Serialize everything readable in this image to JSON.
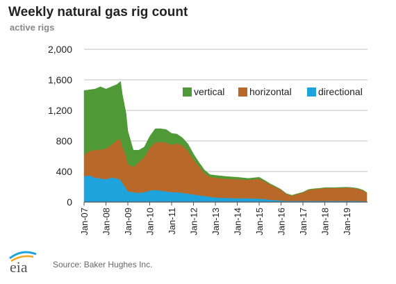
{
  "title": "Weekly natural gas rig count",
  "subtitle": "active rigs",
  "source": "Source: Baker Hughes Inc.",
  "logo_text": "eia",
  "colors": {
    "vertical": "#4f9a36",
    "horizontal": "#b8692a",
    "directional": "#1fa3dc",
    "grid": "#bfbfbf",
    "axis": "#555555"
  },
  "chart_data": {
    "type": "area",
    "stacked": true,
    "x": [
      2007.0,
      2007.25,
      2007.5,
      2007.75,
      2008.0,
      2008.25,
      2008.5,
      2008.67,
      2008.75,
      2008.92,
      2009.0,
      2009.25,
      2009.5,
      2009.75,
      2010.0,
      2010.25,
      2010.5,
      2010.75,
      2011.0,
      2011.25,
      2011.5,
      2011.75,
      2012.0,
      2012.25,
      2012.5,
      2012.75,
      2013.0,
      2013.5,
      2014.0,
      2014.5,
      2015.0,
      2015.25,
      2015.5,
      2015.75,
      2016.0,
      2016.25,
      2016.5,
      2016.75,
      2017.0,
      2017.25,
      2017.5,
      2017.75,
      2018.0,
      2018.5,
      2019.0,
      2019.25,
      2019.5,
      2019.75,
      2019.92
    ],
    "x_tick_labels": [
      "Jan-07",
      "Jan-08",
      "Jan-09",
      "Jan-10",
      "Jan-11",
      "Jan-12",
      "Jan-13",
      "Jan-14",
      "Jan-15",
      "Jan-16",
      "Jan-17",
      "Jan-18",
      "Jan-19"
    ],
    "x_ticks": [
      2007,
      2008,
      2009,
      2010,
      2011,
      2012,
      2013,
      2014,
      2015,
      2016,
      2017,
      2018,
      2019
    ],
    "xlim": [
      2007.0,
      2019.95
    ],
    "ylim": [
      0,
      2000
    ],
    "y_ticks": [
      0,
      400,
      800,
      1200,
      1600,
      2000
    ],
    "y_tick_labels": [
      "0",
      "400",
      "800",
      "1,200",
      "1,600",
      "2,000"
    ],
    "grid": true,
    "legend_position": "top-right",
    "series": [
      {
        "name": "directional",
        "values": [
          340,
          350,
          320,
          310,
          300,
          320,
          310,
          290,
          250,
          180,
          140,
          130,
          120,
          130,
          150,
          160,
          150,
          140,
          130,
          130,
          120,
          110,
          100,
          90,
          80,
          70,
          60,
          55,
          50,
          50,
          45,
          40,
          30,
          25,
          20,
          15,
          15,
          15,
          15,
          15,
          15,
          15,
          15,
          15,
          15,
          15,
          15,
          12,
          10
        ]
      },
      {
        "name": "horizontal",
        "values": [
          280,
          320,
          360,
          380,
          400,
          430,
          500,
          540,
          480,
          420,
          360,
          330,
          400,
          460,
          560,
          620,
          640,
          640,
          620,
          640,
          620,
          560,
          460,
          380,
          300,
          260,
          260,
          250,
          250,
          240,
          260,
          230,
          200,
          170,
          140,
          90,
          70,
          90,
          110,
          145,
          155,
          160,
          170,
          170,
          175,
          170,
          160,
          140,
          110
        ]
      },
      {
        "name": "vertical",
        "values": [
          840,
          800,
          800,
          820,
          780,
          760,
          730,
          750,
          680,
          560,
          430,
          220,
          160,
          130,
          150,
          180,
          170,
          170,
          150,
          120,
          100,
          90,
          70,
          50,
          40,
          30,
          30,
          30,
          25,
          20,
          20,
          15,
          10,
          10,
          5,
          5,
          5,
          5,
          5,
          5,
          5,
          5,
          5,
          5,
          5,
          5,
          5,
          5,
          5
        ]
      }
    ]
  }
}
